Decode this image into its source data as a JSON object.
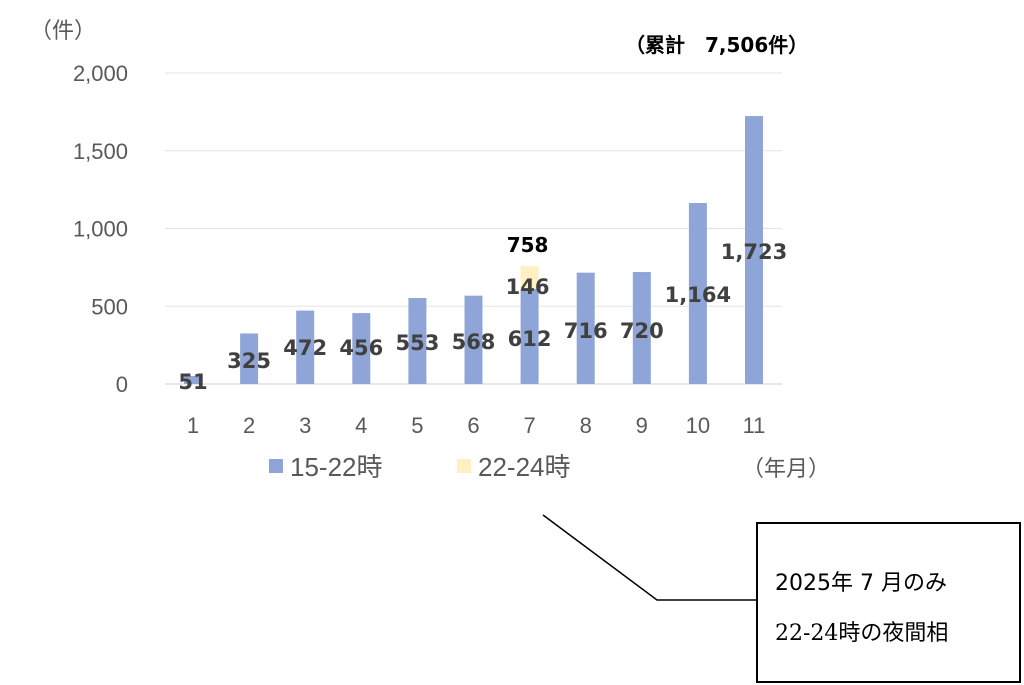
{
  "chart_data": {
    "type": "bar",
    "stacked": true,
    "categories": [
      "1",
      "2",
      "3",
      "4",
      "5",
      "6",
      "7",
      "8",
      "9",
      "10",
      "11"
    ],
    "series": [
      {
        "name": "15-22時",
        "color": "#8FA5D8",
        "values": [
          51,
          325,
          472,
          456,
          553,
          568,
          612,
          716,
          720,
          1164,
          1723
        ]
      },
      {
        "name": "22-24時",
        "color": "#FFF0C2",
        "values": [
          0,
          0,
          0,
          0,
          0,
          0,
          146,
          0,
          0,
          0,
          0
        ]
      }
    ],
    "data_labels": {
      "15-22時": [
        "51",
        "325",
        "472",
        "456",
        "553",
        "568",
        "612",
        "716",
        "720",
        "1,164",
        "1,723"
      ],
      "22-24時": {
        "7": "146"
      },
      "total": {
        "7": "758"
      }
    },
    "ylabel": "（件）",
    "xlabel": "（年月）",
    "yticks": [
      "0",
      "500",
      "1,000",
      "1,500",
      "2,000"
    ],
    "ylim": [
      0,
      2000
    ],
    "grid": true,
    "legend": "bottom",
    "cumulative_note": "（累計　7,506件）"
  },
  "callout": {
    "line1": "2025年 7 月のみ",
    "line2": "22-24時の夜間相"
  }
}
